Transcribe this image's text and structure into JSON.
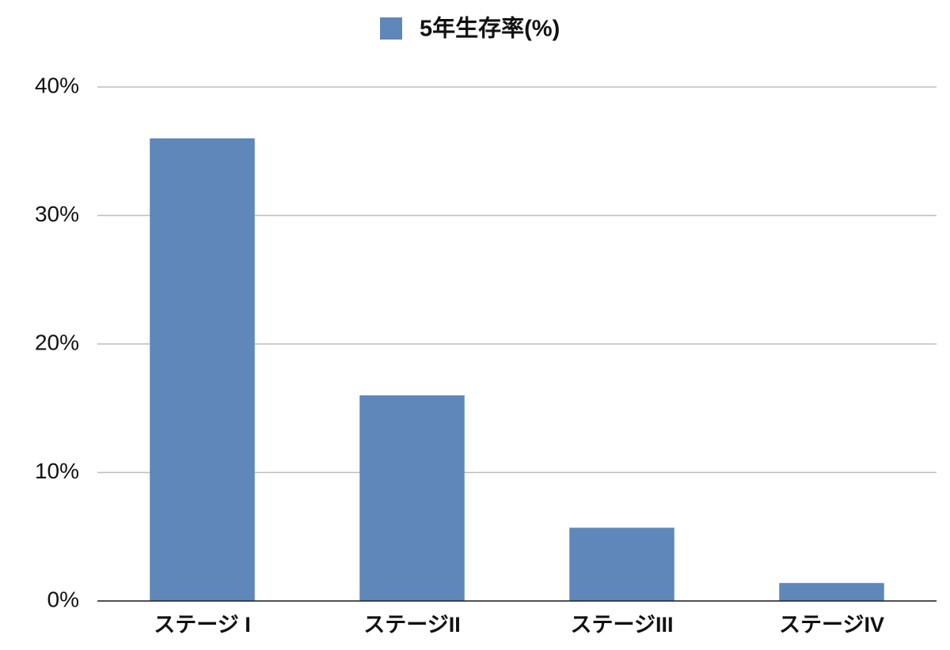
{
  "chart_data": {
    "type": "bar",
    "legend": "top",
    "series": [
      {
        "name": "5年生存率(%)",
        "color": "#5f87b9",
        "values": [
          36,
          16,
          5.7,
          1.4
        ]
      }
    ],
    "categories": [
      "ステージ I",
      "ステージII",
      "ステージIII",
      "ステージIV"
    ],
    "ylim": [
      0,
      40
    ],
    "yticks": [
      {
        "value": 0,
        "label": "0%"
      },
      {
        "value": 10,
        "label": "10%"
      },
      {
        "value": 20,
        "label": "20%"
      },
      {
        "value": 30,
        "label": "30%"
      },
      {
        "value": 40,
        "label": "40%"
      }
    ],
    "grid": true
  }
}
